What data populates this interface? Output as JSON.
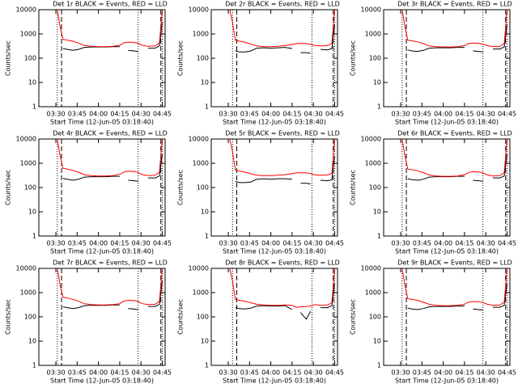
{
  "chart_data": [
    {
      "type": "line",
      "title": "Det 1r BLACK = Events, RED = LLD",
      "x_label": "Start Time (12-Jun-05 03:18:40)",
      "y_label": "Counts/sec",
      "log_y": true,
      "x": [
        "03:31",
        "03:33",
        "03:35",
        "03:38",
        "03:42",
        "03:46",
        "03:50",
        "03:55",
        "04:00",
        "04:05",
        "04:10",
        "04:15",
        "04:18",
        "04:21",
        "04:25",
        "04:28",
        "04:31",
        "04:35",
        "04:40",
        "04:43",
        "04:45"
      ],
      "series": [
        {
          "color": "#000000",
          "values": [
            null,
            null,
            250,
            230,
            210,
            230,
            280,
            290,
            290,
            290,
            300,
            300,
            null,
            210,
            200,
            190,
            null,
            260,
            260,
            320,
            3000
          ]
        },
        {
          "color": "#ff0000",
          "values": [
            10000,
            2000,
            600,
            560,
            500,
            420,
            340,
            310,
            300,
            300,
            310,
            340,
            430,
            460,
            450,
            410,
            340,
            310,
            320,
            420,
            10000
          ]
        }
      ],
      "vlines": [
        {
          "x": "03:31",
          "style": "dotted"
        },
        {
          "x": "03:34",
          "style": "dashed"
        },
        {
          "x": "04:28",
          "style": "dotted"
        },
        {
          "x": "04:44",
          "style": "dashed"
        },
        {
          "x": "04:45",
          "style": "dotted"
        }
      ],
      "xlim": [
        "03:18",
        "04:47"
      ],
      "xticks": [
        "03:30",
        "03:45",
        "04:00",
        "04:15",
        "04:30",
        "04:45"
      ],
      "ylim": [
        1,
        10000
      ],
      "yticks": [
        1,
        10,
        100,
        1000,
        10000
      ]
    },
    {
      "type": "line",
      "title": "Det 2r BLACK = Events, RED = LLD",
      "x_label": "Start Time (12-Jun-05 03:18:40)",
      "y_label": "Counts/sec",
      "log_y": true,
      "x": [
        "03:31",
        "03:33",
        "03:35",
        "03:38",
        "03:42",
        "03:46",
        "03:50",
        "03:55",
        "04:00",
        "04:05",
        "04:10",
        "04:15",
        "04:18",
        "04:21",
        "04:25",
        "04:28",
        "04:31",
        "04:35",
        "04:40",
        "04:43",
        "04:45"
      ],
      "series": [
        {
          "color": "#000000",
          "values": [
            null,
            null,
            200,
            180,
            180,
            200,
            260,
            270,
            260,
            270,
            280,
            250,
            null,
            170,
            170,
            160,
            null,
            230,
            220,
            250,
            2500
          ]
        },
        {
          "color": "#ff0000",
          "values": [
            10000,
            3000,
            550,
            500,
            450,
            380,
            320,
            300,
            300,
            310,
            330,
            370,
            400,
            410,
            400,
            380,
            330,
            320,
            330,
            400,
            10000
          ]
        }
      ],
      "vlines": [
        {
          "x": "03:33",
          "style": "dotted"
        },
        {
          "x": "03:36",
          "style": "dashed"
        },
        {
          "x": "04:29",
          "style": "dotted"
        },
        {
          "x": "04:44",
          "style": "dashed"
        },
        {
          "x": "04:45",
          "style": "dotted"
        }
      ],
      "xlim": [
        "03:18",
        "04:47"
      ],
      "xticks": [
        "03:30",
        "03:45",
        "04:00",
        "04:15",
        "04:30",
        "04:45"
      ],
      "ylim": [
        1,
        10000
      ],
      "yticks": [
        1,
        10,
        100,
        1000,
        10000
      ]
    },
    {
      "type": "line",
      "title": "Det 3r BLACK = Events, RED = LLD",
      "x_label": "Start Time (12-Jun-05 03:18:40)",
      "y_label": "Counts/sec",
      "log_y": true,
      "x": [
        "03:31",
        "03:33",
        "03:35",
        "03:38",
        "03:42",
        "03:46",
        "03:50",
        "03:55",
        "04:00",
        "04:05",
        "04:10",
        "04:15",
        "04:18",
        "04:21",
        "04:25",
        "04:28",
        "04:31",
        "04:35",
        "04:40",
        "04:43",
        "04:45"
      ],
      "series": [
        {
          "color": "#000000",
          "values": [
            null,
            null,
            220,
            200,
            190,
            210,
            260,
            270,
            270,
            270,
            280,
            280,
            null,
            200,
            190,
            180,
            null,
            240,
            240,
            290,
            2500
          ]
        },
        {
          "color": "#ff0000",
          "values": [
            10000,
            2000,
            550,
            520,
            470,
            400,
            320,
            300,
            290,
            290,
            300,
            330,
            400,
            420,
            410,
            380,
            330,
            300,
            310,
            400,
            10000
          ]
        }
      ],
      "vlines": [
        {
          "x": "03:31",
          "style": "dotted"
        },
        {
          "x": "03:34",
          "style": "dashed"
        },
        {
          "x": "04:28",
          "style": "dotted"
        },
        {
          "x": "04:44",
          "style": "dashed"
        },
        {
          "x": "04:45",
          "style": "dotted"
        }
      ],
      "xlim": [
        "03:18",
        "04:47"
      ],
      "xticks": [
        "03:30",
        "03:45",
        "04:00",
        "04:15",
        "04:30",
        "04:45"
      ],
      "ylim": [
        1,
        10000
      ],
      "yticks": [
        1,
        10,
        100,
        1000,
        10000
      ]
    },
    {
      "type": "line",
      "title": "Det 4r BLACK = Events, RED = LLD",
      "x_label": "Start Time (12-Jun-05 03:18:40)",
      "y_label": "Counts/sec",
      "log_y": true,
      "x": [
        "03:31",
        "03:33",
        "03:35",
        "03:38",
        "03:42",
        "03:46",
        "03:50",
        "03:55",
        "04:00",
        "04:05",
        "04:10",
        "04:15",
        "04:18",
        "04:21",
        "04:25",
        "04:28",
        "04:31",
        "04:35",
        "04:40",
        "04:43",
        "04:45"
      ],
      "series": [
        {
          "color": "#000000",
          "values": [
            null,
            null,
            240,
            220,
            200,
            220,
            270,
            280,
            280,
            280,
            290,
            290,
            null,
            200,
            190,
            180,
            null,
            250,
            250,
            300,
            2500
          ]
        },
        {
          "color": "#ff0000",
          "values": [
            10000,
            2000,
            620,
            580,
            510,
            430,
            340,
            310,
            300,
            300,
            310,
            350,
            440,
            470,
            460,
            420,
            340,
            310,
            320,
            430,
            10000
          ]
        }
      ],
      "vlines": [
        {
          "x": "03:31",
          "style": "dotted"
        },
        {
          "x": "03:34",
          "style": "dashed"
        },
        {
          "x": "04:28",
          "style": "dotted"
        },
        {
          "x": "04:44",
          "style": "dashed"
        },
        {
          "x": "04:45",
          "style": "dotted"
        }
      ],
      "xlim": [
        "03:18",
        "04:47"
      ],
      "xticks": [
        "03:30",
        "03:45",
        "04:00",
        "04:15",
        "04:30",
        "04:45"
      ],
      "ylim": [
        1,
        10000
      ],
      "yticks": [
        1,
        10,
        100,
        1000,
        10000
      ]
    },
    {
      "type": "line",
      "title": "Det 5r BLACK = Events, RED = LLD",
      "x_label": "Start Time (12-Jun-05 03:18:40)",
      "y_label": "Counts/sec",
      "log_y": true,
      "x": [
        "03:31",
        "03:33",
        "03:35",
        "03:38",
        "03:42",
        "03:46",
        "03:50",
        "03:55",
        "04:00",
        "04:05",
        "04:10",
        "04:15",
        "04:18",
        "04:21",
        "04:25",
        "04:28",
        "04:31",
        "04:35",
        "04:40",
        "04:43",
        "04:45"
      ],
      "series": [
        {
          "color": "#000000",
          "values": [
            null,
            null,
            180,
            160,
            160,
            170,
            220,
            230,
            220,
            230,
            230,
            220,
            null,
            150,
            150,
            140,
            null,
            200,
            190,
            210,
            2000
          ]
        },
        {
          "color": "#ff0000",
          "values": [
            10000,
            3000,
            520,
            480,
            430,
            370,
            320,
            310,
            310,
            320,
            340,
            380,
            400,
            410,
            400,
            380,
            330,
            320,
            330,
            380,
            10000
          ]
        }
      ],
      "vlines": [
        {
          "x": "03:33",
          "style": "dotted"
        },
        {
          "x": "03:36",
          "style": "dashed"
        },
        {
          "x": "04:29",
          "style": "dotted"
        },
        {
          "x": "04:44",
          "style": "dashed"
        },
        {
          "x": "04:45",
          "style": "dotted"
        }
      ],
      "xlim": [
        "03:18",
        "04:47"
      ],
      "xticks": [
        "03:30",
        "03:45",
        "04:00",
        "04:15",
        "04:30",
        "04:45"
      ],
      "ylim": [
        1,
        10000
      ],
      "yticks": [
        1,
        10,
        100,
        1000,
        10000
      ]
    },
    {
      "type": "line",
      "title": "Det 6r BLACK = Events, RED = LLD",
      "x_label": "Start Time (12-Jun-05 03:18:40)",
      "y_label": "Counts/sec",
      "log_y": true,
      "x": [
        "03:31",
        "03:33",
        "03:35",
        "03:38",
        "03:42",
        "03:46",
        "03:50",
        "03:55",
        "04:00",
        "04:05",
        "04:10",
        "04:15",
        "04:18",
        "04:21",
        "04:25",
        "04:28",
        "04:31",
        "04:35",
        "04:40",
        "04:43",
        "04:45"
      ],
      "series": [
        {
          "color": "#000000",
          "values": [
            null,
            null,
            230,
            210,
            200,
            220,
            270,
            280,
            280,
            280,
            290,
            290,
            null,
            200,
            190,
            180,
            null,
            250,
            250,
            300,
            2500
          ]
        },
        {
          "color": "#ff0000",
          "values": [
            10000,
            2000,
            580,
            540,
            490,
            410,
            330,
            300,
            290,
            290,
            300,
            340,
            420,
            450,
            440,
            400,
            330,
            300,
            310,
            410,
            10000
          ]
        }
      ],
      "vlines": [
        {
          "x": "03:31",
          "style": "dotted"
        },
        {
          "x": "03:34",
          "style": "dashed"
        },
        {
          "x": "04:28",
          "style": "dotted"
        },
        {
          "x": "04:44",
          "style": "dashed"
        },
        {
          "x": "04:45",
          "style": "dotted"
        }
      ],
      "xlim": [
        "03:18",
        "04:47"
      ],
      "xticks": [
        "03:30",
        "03:45",
        "04:00",
        "04:15",
        "04:30",
        "04:45"
      ],
      "ylim": [
        1,
        10000
      ],
      "yticks": [
        1,
        10,
        100,
        1000,
        10000
      ]
    },
    {
      "type": "line",
      "title": "Det 7r BLACK = Events, RED = LLD",
      "x_label": "Start Time (12-Jun-05 03:18:40)",
      "y_label": "Counts/sec",
      "log_y": true,
      "x": [
        "03:31",
        "03:33",
        "03:35",
        "03:38",
        "03:42",
        "03:46",
        "03:50",
        "03:55",
        "04:00",
        "04:05",
        "04:10",
        "04:15",
        "04:18",
        "04:21",
        "04:25",
        "04:28",
        "04:31",
        "04:35",
        "04:40",
        "04:43",
        "04:45"
      ],
      "series": [
        {
          "color": "#000000",
          "values": [
            null,
            null,
            260,
            240,
            220,
            240,
            290,
            300,
            300,
            300,
            310,
            310,
            null,
            220,
            210,
            200,
            null,
            270,
            270,
            330,
            3000
          ]
        },
        {
          "color": "#ff0000",
          "values": [
            10000,
            2000,
            640,
            600,
            530,
            440,
            350,
            320,
            310,
            310,
            320,
            350,
            450,
            480,
            470,
            430,
            350,
            320,
            330,
            440,
            10000
          ]
        }
      ],
      "vlines": [
        {
          "x": "03:31",
          "style": "dotted"
        },
        {
          "x": "03:34",
          "style": "dashed"
        },
        {
          "x": "04:28",
          "style": "dotted"
        },
        {
          "x": "04:44",
          "style": "dashed"
        },
        {
          "x": "04:45",
          "style": "dotted"
        }
      ],
      "xlim": [
        "03:18",
        "04:47"
      ],
      "xticks": [
        "03:30",
        "03:45",
        "04:00",
        "04:15",
        "04:30",
        "04:45"
      ],
      "ylim": [
        1,
        10000
      ],
      "yticks": [
        1,
        10,
        100,
        1000,
        10000
      ]
    },
    {
      "type": "line",
      "title": "Det 8r BLACK = Events, RED = LLD",
      "x_label": "Start Time (12-Jun-05 03:18:40)",
      "y_label": "Counts/sec",
      "log_y": true,
      "x": [
        "03:31",
        "03:33",
        "03:35",
        "03:38",
        "03:42",
        "03:46",
        "03:50",
        "03:55",
        "04:00",
        "04:05",
        "04:10",
        "04:15",
        "04:18",
        "04:21",
        "04:25",
        "04:28",
        "04:31",
        "04:35",
        "04:40",
        "04:43",
        "04:45"
      ],
      "series": [
        {
          "color": "#000000",
          "values": [
            null,
            null,
            240,
            220,
            210,
            230,
            280,
            290,
            280,
            280,
            290,
            200,
            null,
            150,
            80,
            170,
            null,
            240,
            240,
            290,
            2500
          ]
        },
        {
          "color": "#ff0000",
          "values": [
            10000,
            3000,
            520,
            480,
            440,
            380,
            330,
            310,
            300,
            300,
            310,
            300,
            250,
            260,
            270,
            280,
            320,
            300,
            310,
            380,
            10000
          ]
        }
      ],
      "vlines": [
        {
          "x": "03:33",
          "style": "dotted"
        },
        {
          "x": "03:36",
          "style": "dashed"
        },
        {
          "x": "04:29",
          "style": "dotted"
        },
        {
          "x": "04:44",
          "style": "dashed"
        },
        {
          "x": "04:45",
          "style": "dotted"
        }
      ],
      "xlim": [
        "03:18",
        "04:47"
      ],
      "xticks": [
        "03:30",
        "03:45",
        "04:00",
        "04:15",
        "04:30",
        "04:45"
      ],
      "ylim": [
        1,
        10000
      ],
      "yticks": [
        1,
        10,
        100,
        1000,
        10000
      ]
    },
    {
      "type": "line",
      "title": "Det 9r BLACK = Events, RED = LLD",
      "x_label": "Start Time (12-Jun-05 03:18:40)",
      "y_label": "Counts/sec",
      "log_y": true,
      "x": [
        "03:31",
        "03:33",
        "03:35",
        "03:38",
        "03:42",
        "03:46",
        "03:50",
        "03:55",
        "04:00",
        "04:05",
        "04:10",
        "04:15",
        "04:18",
        "04:21",
        "04:25",
        "04:28",
        "04:31",
        "04:35",
        "04:40",
        "04:43",
        "04:45"
      ],
      "series": [
        {
          "color": "#000000",
          "values": [
            null,
            null,
            230,
            210,
            200,
            220,
            260,
            270,
            270,
            270,
            280,
            280,
            null,
            210,
            200,
            190,
            null,
            250,
            250,
            300,
            2500
          ]
        },
        {
          "color": "#ff0000",
          "values": [
            10000,
            2000,
            560,
            530,
            480,
            400,
            330,
            300,
            290,
            290,
            300,
            330,
            410,
            430,
            420,
            390,
            330,
            300,
            310,
            400,
            10000
          ]
        }
      ],
      "vlines": [
        {
          "x": "03:31",
          "style": "dotted"
        },
        {
          "x": "03:34",
          "style": "dashed"
        },
        {
          "x": "04:28",
          "style": "dotted"
        },
        {
          "x": "04:44",
          "style": "dashed"
        },
        {
          "x": "04:45",
          "style": "dotted"
        }
      ],
      "xlim": [
        "03:18",
        "04:47"
      ],
      "xticks": [
        "03:30",
        "03:45",
        "04:00",
        "04:15",
        "04:30",
        "04:45"
      ],
      "ylim": [
        1,
        10000
      ],
      "yticks": [
        1,
        10,
        100,
        1000,
        10000
      ]
    }
  ]
}
